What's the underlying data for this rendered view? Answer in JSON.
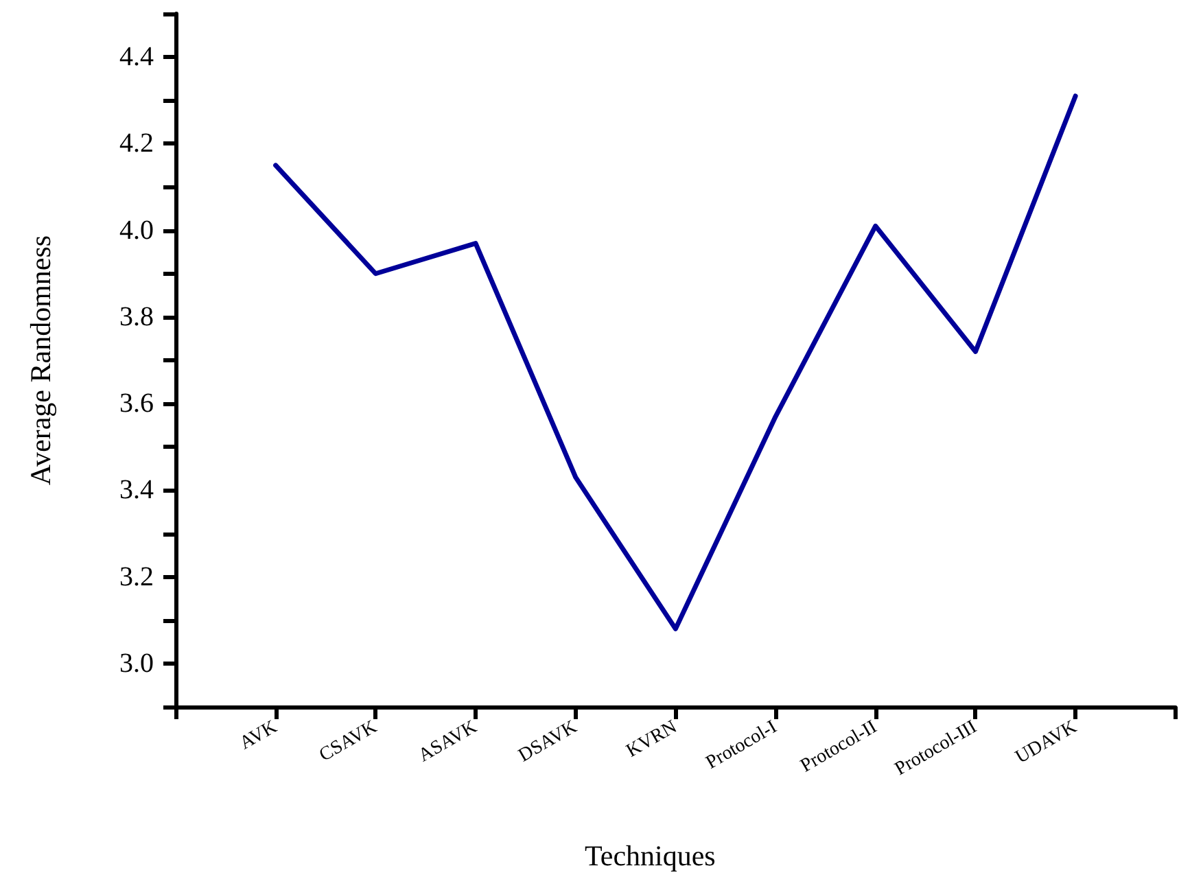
{
  "chart_data": {
    "type": "line",
    "xlabel": "Techniques",
    "ylabel": "Average Randomness",
    "categories": [
      null,
      "AVK",
      "CSAVK",
      "ASAVK",
      "DSAVK",
      "KVRN",
      "Protocol-I",
      "Protocol-II",
      "Protocol-III",
      "UDAVK",
      null
    ],
    "series": [
      {
        "color": "#000099",
        "values": [
          null,
          4.15,
          3.9,
          3.97,
          3.43,
          3.08,
          3.57,
          4.01,
          3.72,
          4.31,
          null
        ]
      }
    ],
    "ylim": [
      2.9,
      4.5
    ],
    "yticks": [
      {
        "value": 2.9,
        "label": null
      },
      {
        "value": 3.0,
        "label": "3.0"
      },
      {
        "value": 3.1,
        "label": null
      },
      3.2,
      {
        "value": 3.3,
        "label": null
      },
      3.4,
      {
        "value": 3.5,
        "label": null
      },
      3.6,
      {
        "value": 3.7,
        "label": null
      },
      3.8,
      {
        "value": 3.9,
        "label": null
      },
      {
        "value": 4.0,
        "label": "4.0"
      },
      {
        "value": 4.1,
        "label": null
      },
      4.2,
      {
        "value": 4.3,
        "label": null
      },
      4.4,
      {
        "value": 4.5,
        "label": null
      }
    ],
    "grid": false,
    "marker": "none",
    "line_style": "solid"
  }
}
